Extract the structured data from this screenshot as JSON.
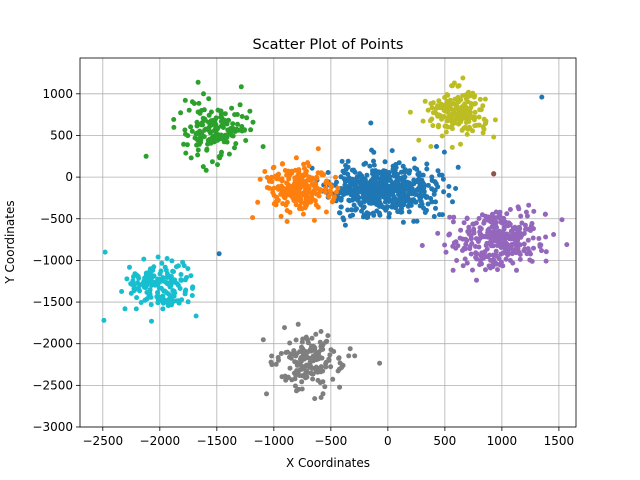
{
  "chart_data": {
    "type": "scatter",
    "title": "Scatter Plot of Points",
    "xlabel": "X Coordinates",
    "ylabel": "Y Coordinates",
    "xlim": [
      -2700,
      1650
    ],
    "ylim": [
      -3000,
      1430
    ],
    "xticks": [
      -2500,
      -2000,
      -1500,
      -1000,
      -500,
      0,
      500,
      1000,
      1500
    ],
    "yticks": [
      -3000,
      -2500,
      -2000,
      -1500,
      -1000,
      -500,
      0,
      500,
      1000
    ],
    "grid": true,
    "legend": "none",
    "clusters": [
      {
        "color": "#1f77b4",
        "cx": -50,
        "cy": -150,
        "sx": 230,
        "sy": 150,
        "n": 560,
        "seed": 11
      },
      {
        "color": "#ff7f0e",
        "cx": -800,
        "cy": -150,
        "sx": 150,
        "sy": 150,
        "n": 210,
        "seed": 23
      },
      {
        "color": "#2ca02c",
        "cx": -1500,
        "cy": 580,
        "sx": 140,
        "sy": 180,
        "n": 160,
        "seed": 37
      },
      {
        "color": "#d62728",
        "cx": 930,
        "cy": 40,
        "sx": 3,
        "sy": 3,
        "n": 1,
        "seed": 41
      },
      {
        "color": "#9467bd",
        "cx": 950,
        "cy": -750,
        "sx": 190,
        "sy": 170,
        "n": 300,
        "seed": 53
      },
      {
        "color": "#8c564b",
        "cx": 930,
        "cy": 40,
        "sx": 2,
        "sy": 2,
        "n": 1,
        "seed": 59
      },
      {
        "color": "#7f7f7f",
        "cx": -690,
        "cy": -2200,
        "sx": 150,
        "sy": 170,
        "n": 170,
        "seed": 67
      },
      {
        "color": "#bcbd22",
        "cx": 620,
        "cy": 780,
        "sx": 140,
        "sy": 140,
        "n": 180,
        "seed": 71
      },
      {
        "color": "#17becf",
        "cx": -2020,
        "cy": -1300,
        "sx": 150,
        "sy": 150,
        "n": 170,
        "seed": 83
      }
    ],
    "outliers": [
      {
        "color": "#1f77b4",
        "x": 1350,
        "y": 960
      },
      {
        "color": "#1f77b4",
        "x": -1480,
        "y": -920
      },
      {
        "color": "#1f77b4",
        "x": -150,
        "y": 650
      },
      {
        "color": "#2ca02c",
        "x": -2120,
        "y": 250
      },
      {
        "color": "#17becf",
        "x": -2490,
        "y": -1720
      },
      {
        "color": "#17becf",
        "x": -2480,
        "y": -900
      }
    ]
  }
}
